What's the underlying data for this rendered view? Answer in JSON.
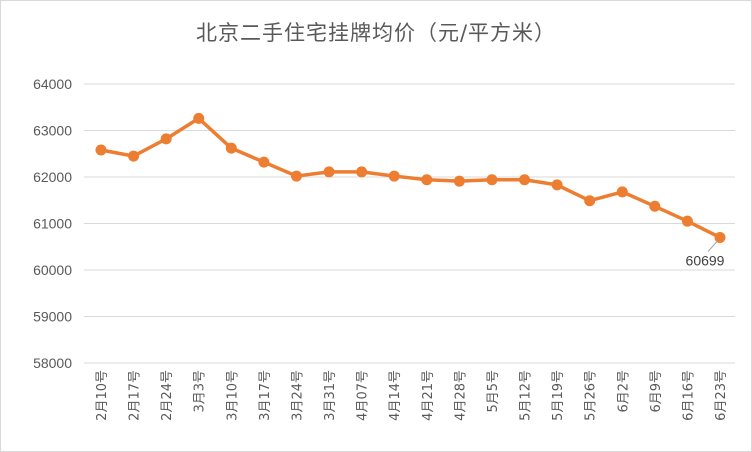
{
  "chart_data": {
    "type": "line",
    "title": "北京二手住宅挂牌均价（元/平方米）",
    "categories": [
      "2月10号",
      "2月17号",
      "2月24号",
      "3月3号",
      "3月10号",
      "3月17号",
      "3月24号",
      "3月31号",
      "4月07号",
      "4月14号",
      "4月21号",
      "4月28号",
      "5月5号",
      "5月12号",
      "5月19号",
      "5月26号",
      "6月2号",
      "6月9号",
      "6月16号",
      "6月23号"
    ],
    "series": [
      {
        "values": [
          62580,
          62450,
          62820,
          63260,
          62620,
          62320,
          62020,
          62110,
          62110,
          62020,
          61940,
          61910,
          61940,
          61940,
          61830,
          61490,
          61680,
          61370,
          61050,
          60699
        ]
      }
    ],
    "ylim": [
      58000,
      64000
    ],
    "yticks": [
      58000,
      59000,
      60000,
      61000,
      62000,
      63000,
      64000
    ],
    "grid": true,
    "data_labels": [
      {
        "index": 19,
        "text": "60699"
      }
    ],
    "colors": {
      "line": "#ED7D31",
      "grid": "#d9d9d9",
      "text": "#595959"
    }
  }
}
